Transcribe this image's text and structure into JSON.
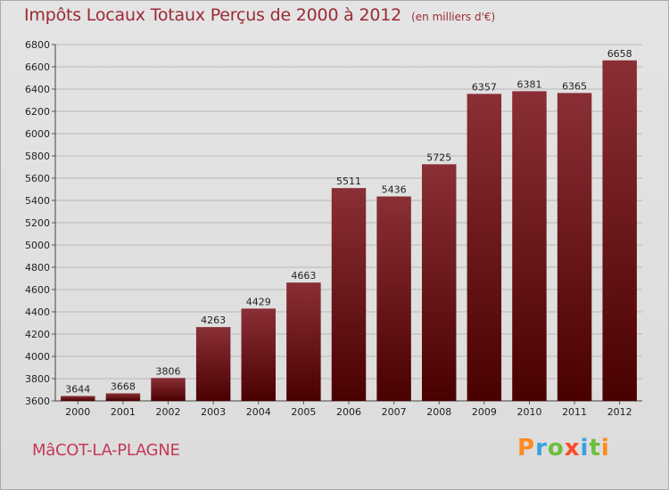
{
  "header": {
    "title": "Impôts Locaux Totaux Perçus de 2000 à 2012",
    "subtitle": "(en milliers d'€)"
  },
  "footer": {
    "town": "MâCOT-LA-PLAGNE",
    "brand": "Proxiti"
  },
  "colors": {
    "bar_top": "#8a2f36",
    "bar_bottom": "#4a0000",
    "title": "#9b2a35",
    "town": "#c43a58"
  },
  "chart_data": {
    "type": "bar",
    "title": "Impôts Locaux Totaux Perçus de 2000 à 2012",
    "subtitle": "(en milliers d'€)",
    "categories": [
      "2000",
      "2001",
      "2002",
      "2003",
      "2004",
      "2005",
      "2006",
      "2007",
      "2008",
      "2009",
      "2010",
      "2011",
      "2012"
    ],
    "values": [
      3644,
      3668,
      3806,
      4263,
      4429,
      4663,
      5511,
      5436,
      5725,
      6357,
      6381,
      6365,
      6658
    ],
    "ylim": [
      3600,
      6800
    ],
    "yticks": [
      3600,
      3800,
      4000,
      4200,
      4400,
      4600,
      4800,
      5000,
      5200,
      5400,
      5600,
      5800,
      6000,
      6200,
      6400,
      6600,
      6800
    ],
    "grid": true,
    "legend": "none",
    "data_labels": true
  }
}
